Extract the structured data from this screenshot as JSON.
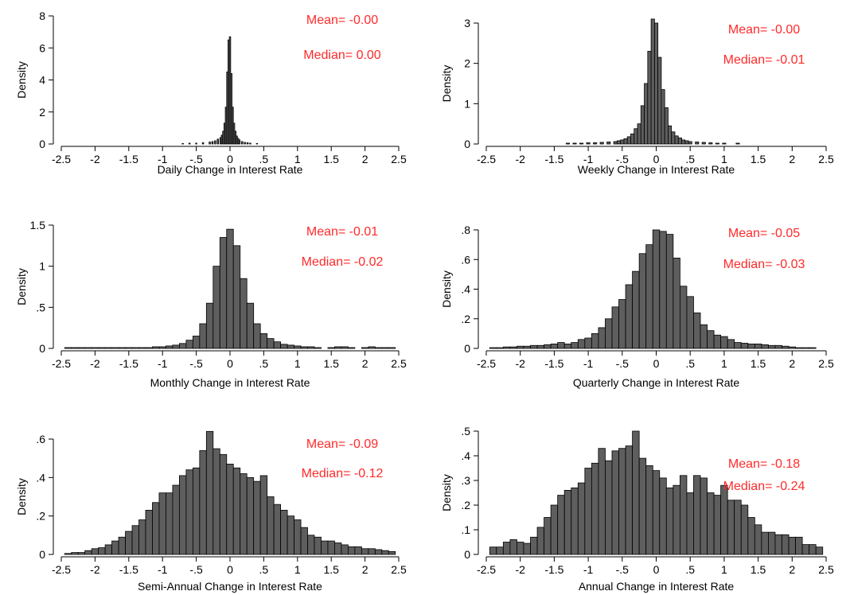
{
  "chart_data": [
    {
      "type": "bar",
      "xlabel": "Daily Change in Interest Rate",
      "ylabel": "Density",
      "xlim": [
        -2.5,
        2.5
      ],
      "ylim": [
        0,
        8
      ],
      "bin_width": 0.02,
      "xticks": [
        -2.5,
        -2,
        -1.5,
        -1,
        -0.5,
        0,
        0.5,
        1,
        1.5,
        2,
        2.5
      ],
      "xtick_labels": [
        "-2.5",
        "-2",
        "-1.5",
        "-1",
        "-.5",
        "0",
        ".5",
        "1",
        "1.5",
        "2",
        "2.5"
      ],
      "yticks": [
        0,
        2,
        4,
        6,
        8
      ],
      "ytick_labels": [
        "0",
        "2",
        "4",
        "6",
        "8"
      ],
      "annotations": [
        "Mean= -0.00",
        "Median= 0.00"
      ],
      "x": [
        -0.7,
        -0.6,
        -0.5,
        -0.4,
        -0.3,
        -0.26,
        -0.22,
        -0.18,
        -0.14,
        -0.12,
        -0.1,
        -0.08,
        -0.06,
        -0.04,
        -0.02,
        0,
        0.02,
        0.04,
        0.06,
        0.08,
        0.1,
        0.12,
        0.14,
        0.18,
        0.22,
        0.26,
        0.3,
        0.4
      ],
      "values": [
        0.03,
        0.05,
        0.05,
        0.08,
        0.12,
        0.15,
        0.2,
        0.3,
        0.4,
        0.55,
        0.8,
        1.3,
        2.3,
        4.5,
        6.5,
        6.7,
        4.4,
        2.3,
        1.3,
        0.8,
        0.5,
        0.35,
        0.25,
        0.15,
        0.1,
        0.08,
        0.05,
        0.03
      ]
    },
    {
      "type": "bar",
      "xlabel": "Weekly Change in Interest Rate",
      "ylabel": "Density",
      "xlim": [
        -2.5,
        2.5
      ],
      "ylim": [
        0,
        3
      ],
      "bin_width": 0.05,
      "xticks": [
        -2.5,
        -2,
        -1.5,
        -1,
        -0.5,
        0,
        0.5,
        1,
        1.5,
        2,
        2.5
      ],
      "xtick_labels": [
        "-2.5",
        "-2",
        "-1.5",
        "-1",
        "-.5",
        "0",
        ".5",
        "1",
        "1.5",
        "2",
        "2.5"
      ],
      "yticks": [
        0,
        1,
        2,
        3
      ],
      "ytick_labels": [
        "0",
        "1",
        "2",
        "3"
      ],
      "annotations": [
        "Mean= -0.00",
        "Median= -0.01"
      ],
      "x": [
        -1.3,
        -1.2,
        -1.1,
        -1.0,
        -0.9,
        -0.8,
        -0.7,
        -0.6,
        -0.55,
        -0.5,
        -0.45,
        -0.4,
        -0.35,
        -0.3,
        -0.25,
        -0.2,
        -0.15,
        -0.1,
        -0.05,
        0,
        0.05,
        0.1,
        0.15,
        0.2,
        0.25,
        0.3,
        0.35,
        0.4,
        0.45,
        0.5,
        0.6,
        0.7,
        0.8,
        0.9,
        1.0,
        1.2
      ],
      "values": [
        0.02,
        0.02,
        0.02,
        0.03,
        0.03,
        0.04,
        0.05,
        0.06,
        0.08,
        0.1,
        0.13,
        0.18,
        0.25,
        0.38,
        0.5,
        0.95,
        1.5,
        2.3,
        3.1,
        3.0,
        2.15,
        1.35,
        0.9,
        0.45,
        0.3,
        0.2,
        0.15,
        0.1,
        0.08,
        0.06,
        0.05,
        0.04,
        0.03,
        0.02,
        0.02,
        0.02
      ]
    },
    {
      "type": "bar",
      "xlabel": "Monthly Change in Interest Rate",
      "ylabel": "Density",
      "xlim": [
        -2.5,
        2.5
      ],
      "ylim": [
        0,
        1.5
      ],
      "bin_width": 0.1,
      "xticks": [
        -2.5,
        -2,
        -1.5,
        -1,
        -0.5,
        0,
        0.5,
        1,
        1.5,
        2,
        2.5
      ],
      "xtick_labels": [
        "-2.5",
        "-2",
        "-1.5",
        "-1",
        "-.5",
        "0",
        ".5",
        "1",
        "1.5",
        "2",
        "2.5"
      ],
      "yticks": [
        0,
        0.5,
        1,
        1.5
      ],
      "ytick_labels": [
        "0",
        ".5",
        "1",
        "1.5"
      ],
      "annotations": [
        "Mean= -0.01",
        "Median= -0.02"
      ],
      "x": [
        -2.4,
        -2.3,
        -2.2,
        -2.1,
        -2.0,
        -1.9,
        -1.8,
        -1.7,
        -1.6,
        -1.5,
        -1.4,
        -1.3,
        -1.2,
        -1.1,
        -1.0,
        -0.9,
        -0.8,
        -0.7,
        -0.6,
        -0.5,
        -0.4,
        -0.3,
        -0.2,
        -0.1,
        0,
        0.1,
        0.2,
        0.3,
        0.4,
        0.5,
        0.6,
        0.7,
        0.8,
        0.9,
        1.0,
        1.1,
        1.2,
        1.3,
        1.5,
        1.6,
        1.7,
        1.8,
        2.0,
        2.1,
        2.2,
        2.3,
        2.4
      ],
      "values": [
        0.01,
        0.01,
        0.01,
        0.01,
        0.01,
        0.01,
        0.01,
        0.01,
        0.01,
        0.01,
        0.01,
        0.01,
        0.01,
        0.02,
        0.02,
        0.03,
        0.04,
        0.06,
        0.1,
        0.15,
        0.3,
        0.55,
        1.0,
        1.35,
        1.45,
        1.25,
        0.85,
        0.55,
        0.3,
        0.18,
        0.12,
        0.08,
        0.05,
        0.04,
        0.03,
        0.02,
        0.02,
        0.01,
        0.01,
        0.02,
        0.02,
        0.01,
        0.01,
        0.02,
        0.01,
        0.01,
        0.01
      ]
    },
    {
      "type": "bar",
      "xlabel": "Quarterly Change in Interest Rate",
      "ylabel": "Density",
      "xlim": [
        -2.5,
        2.5
      ],
      "ylim": [
        0,
        0.8
      ],
      "bin_width": 0.1,
      "xticks": [
        -2.5,
        -2,
        -1.5,
        -1,
        -0.5,
        0,
        0.5,
        1,
        1.5,
        2,
        2.5
      ],
      "xtick_labels": [
        "-2.5",
        "-2",
        "-1.5",
        "-1",
        "-.5",
        "0",
        ".5",
        "1",
        "1.5",
        "2",
        "2.5"
      ],
      "yticks": [
        0,
        0.2,
        0.4,
        0.6,
        0.8
      ],
      "ytick_labels": [
        "0",
        ".2",
        ".4",
        ".6",
        ".8"
      ],
      "annotations": [
        "Mean= -0.05",
        "Median= -0.03"
      ],
      "x": [
        -2.4,
        -2.3,
        -2.2,
        -2.1,
        -2.0,
        -1.9,
        -1.8,
        -1.7,
        -1.6,
        -1.5,
        -1.4,
        -1.3,
        -1.2,
        -1.1,
        -1.0,
        -0.9,
        -0.8,
        -0.7,
        -0.6,
        -0.5,
        -0.4,
        -0.3,
        -0.2,
        -0.1,
        0,
        0.1,
        0.2,
        0.3,
        0.4,
        0.5,
        0.6,
        0.7,
        0.8,
        0.9,
        1.0,
        1.1,
        1.2,
        1.3,
        1.4,
        1.5,
        1.6,
        1.7,
        1.8,
        1.9,
        2.0,
        2.1,
        2.2,
        2.3
      ],
      "values": [
        0.005,
        0.005,
        0.01,
        0.01,
        0.015,
        0.015,
        0.02,
        0.02,
        0.025,
        0.03,
        0.04,
        0.03,
        0.04,
        0.06,
        0.07,
        0.1,
        0.14,
        0.2,
        0.28,
        0.33,
        0.43,
        0.52,
        0.64,
        0.7,
        0.8,
        0.79,
        0.77,
        0.61,
        0.42,
        0.35,
        0.24,
        0.16,
        0.12,
        0.09,
        0.08,
        0.06,
        0.04,
        0.035,
        0.03,
        0.03,
        0.025,
        0.02,
        0.02,
        0.015,
        0.01,
        0.005,
        0.005,
        0.005
      ]
    },
    {
      "type": "bar",
      "xlabel": "Semi-Annual Change in Interest Rate",
      "ylabel": "Density",
      "xlim": [
        -2.5,
        2.5
      ],
      "ylim": [
        0,
        0.6
      ],
      "bin_width": 0.1,
      "xticks": [
        -2.5,
        -2,
        -1.5,
        -1,
        -0.5,
        0,
        0.5,
        1,
        1.5,
        2,
        2.5
      ],
      "xtick_labels": [
        "-2.5",
        "-2",
        "-1.5",
        "-1",
        "-.5",
        "0",
        ".5",
        "1",
        "1.5",
        "2",
        "2.5"
      ],
      "yticks": [
        0,
        0.2,
        0.4,
        0.6
      ],
      "ytick_labels": [
        "0",
        ".2",
        ".4",
        ".6"
      ],
      "annotations": [
        "Mean= -0.09",
        "Median= -0.12"
      ],
      "x": [
        -2.4,
        -2.3,
        -2.2,
        -2.1,
        -2.0,
        -1.9,
        -1.8,
        -1.7,
        -1.6,
        -1.5,
        -1.4,
        -1.3,
        -1.2,
        -1.1,
        -1.0,
        -0.9,
        -0.8,
        -0.7,
        -0.6,
        -0.5,
        -0.4,
        -0.3,
        -0.2,
        -0.1,
        0,
        0.1,
        0.2,
        0.3,
        0.4,
        0.5,
        0.6,
        0.7,
        0.8,
        0.9,
        1.0,
        1.1,
        1.2,
        1.3,
        1.4,
        1.5,
        1.6,
        1.7,
        1.8,
        1.9,
        2.0,
        2.1,
        2.2,
        2.3,
        2.4
      ],
      "values": [
        0.005,
        0.01,
        0.01,
        0.02,
        0.03,
        0.035,
        0.05,
        0.07,
        0.09,
        0.12,
        0.15,
        0.18,
        0.23,
        0.27,
        0.32,
        0.32,
        0.36,
        0.41,
        0.44,
        0.45,
        0.54,
        0.64,
        0.55,
        0.52,
        0.47,
        0.45,
        0.42,
        0.4,
        0.38,
        0.41,
        0.3,
        0.26,
        0.23,
        0.2,
        0.18,
        0.14,
        0.1,
        0.09,
        0.07,
        0.07,
        0.06,
        0.05,
        0.04,
        0.04,
        0.03,
        0.03,
        0.025,
        0.02,
        0.015
      ]
    },
    {
      "type": "bar",
      "xlabel": "Annual Change in Interest Rate",
      "ylabel": "Density",
      "xlim": [
        -2.5,
        2.5
      ],
      "ylim": [
        0,
        0.5
      ],
      "bin_width": 0.1,
      "xticks": [
        -2.5,
        -2,
        -1.5,
        -1,
        -0.5,
        0,
        0.5,
        1,
        1.5,
        2,
        2.5
      ],
      "xtick_labels": [
        "-2.5",
        "-2",
        "-1.5",
        "-1",
        "-.5",
        "0",
        ".5",
        "1",
        "1.5",
        "2",
        "2.5"
      ],
      "yticks": [
        0,
        0.1,
        0.2,
        0.3,
        0.4,
        0.5
      ],
      "ytick_labels": [
        "0",
        ".1",
        ".2",
        ".3",
        ".4",
        ".5"
      ],
      "annotations": [
        "Mean= -0.18",
        "Median= -0.24"
      ],
      "x": [
        -2.4,
        -2.3,
        -2.2,
        -2.1,
        -2.0,
        -1.9,
        -1.8,
        -1.7,
        -1.6,
        -1.5,
        -1.4,
        -1.3,
        -1.2,
        -1.1,
        -1.0,
        -0.9,
        -0.8,
        -0.7,
        -0.6,
        -0.5,
        -0.4,
        -0.3,
        -0.2,
        -0.1,
        0,
        0.1,
        0.2,
        0.3,
        0.4,
        0.5,
        0.6,
        0.7,
        0.8,
        0.9,
        1.0,
        1.1,
        1.2,
        1.3,
        1.4,
        1.5,
        1.6,
        1.7,
        1.8,
        1.9,
        2.0,
        2.1,
        2.2,
        2.3,
        2.4
      ],
      "values": [
        0.03,
        0.03,
        0.05,
        0.06,
        0.05,
        0.045,
        0.07,
        0.11,
        0.15,
        0.2,
        0.24,
        0.26,
        0.27,
        0.29,
        0.35,
        0.37,
        0.43,
        0.38,
        0.42,
        0.43,
        0.44,
        0.5,
        0.39,
        0.36,
        0.34,
        0.31,
        0.27,
        0.28,
        0.32,
        0.25,
        0.32,
        0.31,
        0.25,
        0.24,
        0.28,
        0.22,
        0.22,
        0.2,
        0.15,
        0.12,
        0.09,
        0.09,
        0.08,
        0.08,
        0.07,
        0.07,
        0.04,
        0.04,
        0.03
      ]
    }
  ],
  "colors": {
    "bar_fill": "#5e5e5e",
    "bar_stroke": "#000000",
    "annotation": "#ff2a2a",
    "axis": "#000000"
  }
}
